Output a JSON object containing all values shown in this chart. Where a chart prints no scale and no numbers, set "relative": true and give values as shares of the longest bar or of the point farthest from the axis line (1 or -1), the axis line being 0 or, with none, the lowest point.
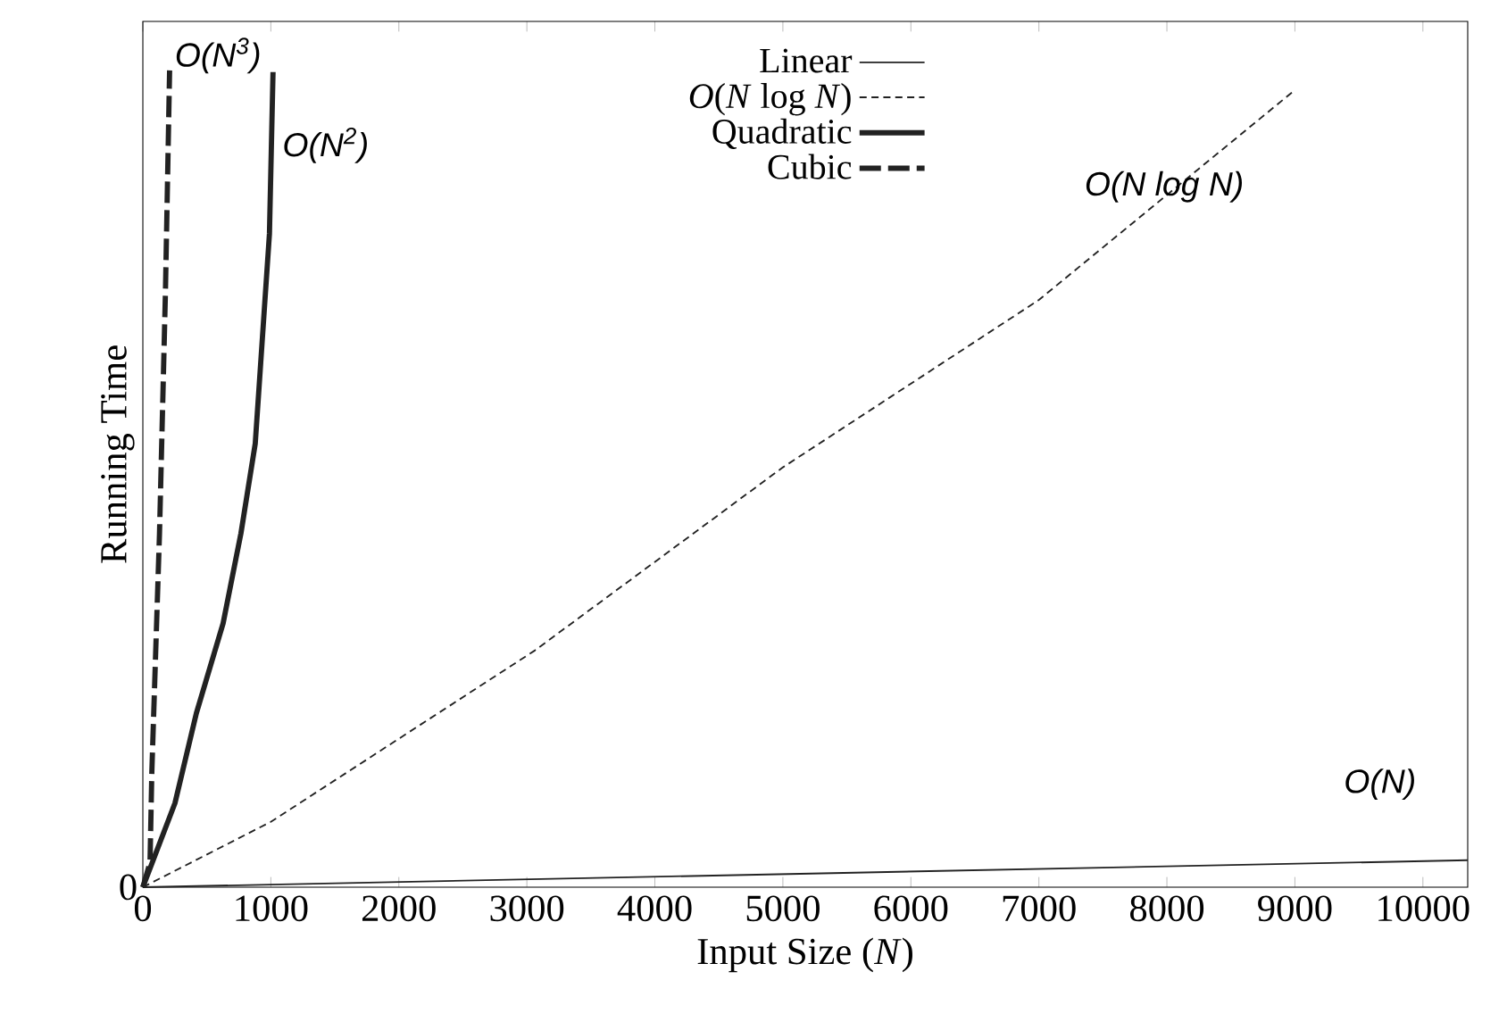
{
  "chart_data": {
    "type": "line",
    "relative": true,
    "xlabel": "Input Size (*N*)",
    "ylabel": "Running Time",
    "xlim": [
      0,
      10350
    ],
    "xticks": [
      0,
      1000,
      2000,
      3000,
      4000,
      5000,
      6000,
      7000,
      8000,
      9000,
      10000
    ],
    "legend": "top",
    "grid": false,
    "marker": "none",
    "series": [
      {
        "name": "Linear",
        "color": "#222222",
        "line_style": "solid",
        "x": [
          0,
          10350
        ],
        "values": [
          0,
          0.033
        ]
      },
      {
        "name": "*O*(*N* log *N*)",
        "color": "#222222",
        "line_style": "dashed",
        "x": [
          0,
          1000,
          3064,
          5000,
          7000,
          9000
        ],
        "values": [
          0,
          0.08,
          0.29,
          0.514,
          0.719,
          0.976
        ]
      },
      {
        "name": "Quadratic",
        "color": "#222222",
        "line_style": "solid",
        "x": [
          0,
          251,
          418,
          627,
          766,
          878,
          989,
          1017
        ],
        "values": [
          0,
          0.103,
          0.213,
          0.323,
          0.433,
          0.543,
          0.8,
          0.998
        ]
      },
      {
        "name": "Cubic",
        "color": "#222222",
        "line_style": "dashed",
        "x": [
          0,
          56,
          70,
          130,
          176,
          209
        ],
        "values": [
          0,
          0.03,
          0.14,
          0.433,
          0.725,
          1.0
        ]
      }
    ],
    "annotations": [
      {
        "text": "O(N$^{3}$)",
        "x": 209,
        "y": 0.99
      },
      {
        "text": "O(N$^{2}$)",
        "x": 1050,
        "y": 0.88
      },
      "O(N log N)",
      "O(N)",
      {
        "text": "0",
        "x": 0,
        "y": 0
      }
    ]
  }
}
